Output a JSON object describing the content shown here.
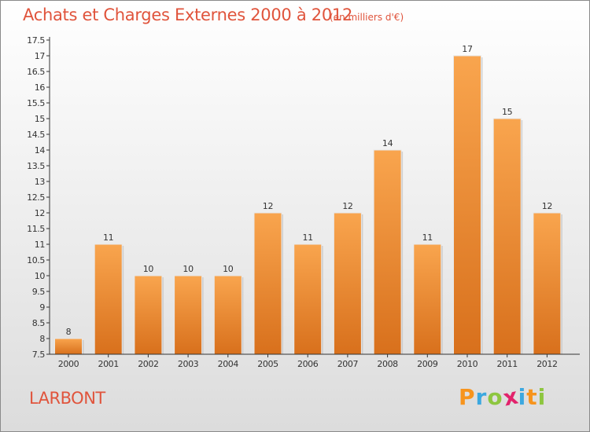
{
  "title": "Achats et Charges Externes 2000 à 2012",
  "subtitle": "(en milliers d'€)",
  "commune": "LARBONT",
  "brand": {
    "letters": [
      "P",
      "r",
      "o",
      "x",
      "i",
      "t",
      "i"
    ],
    "colors": [
      "#f7941d",
      "#3ba8e0",
      "#8dc63f",
      "#e2236c",
      "#3ba8e0",
      "#f7941d",
      "#8dc63f"
    ]
  },
  "colors": {
    "title": "#e0543c",
    "bar_light": "#f9a54e",
    "bar_dark": "#d8701c",
    "axis": "#333333"
  },
  "chart_data": {
    "type": "bar",
    "title": "Achats et Charges Externes 2000 à 2012",
    "subtitle": "(en milliers d'€)",
    "xlabel": "",
    "ylabel": "",
    "categories": [
      "2000",
      "2001",
      "2002",
      "2003",
      "2004",
      "2005",
      "2006",
      "2007",
      "2008",
      "2009",
      "2010",
      "2011",
      "2012"
    ],
    "values": [
      8,
      11,
      10,
      10,
      10,
      12,
      11,
      12,
      14,
      11,
      17,
      15,
      12
    ],
    "data_labels": [
      "8",
      "11",
      "10",
      "10",
      "10",
      "12",
      "11",
      "12",
      "14",
      "11",
      "17",
      "15",
      "12"
    ],
    "ylim": [
      7.5,
      17.5
    ],
    "yticks": [
      "7.5",
      "8",
      "8.5",
      "9",
      "9.5",
      "10",
      "10.5",
      "11",
      "11.5",
      "12",
      "12.5",
      "13",
      "13.5",
      "14",
      "14.5",
      "15",
      "15.5",
      "16",
      "16.5",
      "17",
      "17.5"
    ],
    "ytick_values": [
      7.5,
      8,
      8.5,
      9,
      9.5,
      10,
      10.5,
      11,
      11.5,
      12,
      12.5,
      13,
      13.5,
      14,
      14.5,
      15,
      15.5,
      16,
      16.5,
      17,
      17.5
    ],
    "grid": false,
    "legend": "none"
  }
}
